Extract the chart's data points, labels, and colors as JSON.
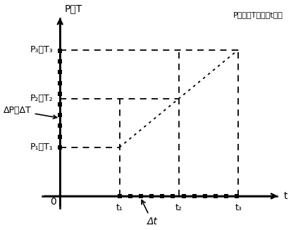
{
  "legend_text": "P压力，T温度，t时间",
  "ylabel": "P、T",
  "xlabel": "t",
  "origin_label": "0",
  "x_tick_labels": [
    "t₁",
    "t₂",
    "t₃"
  ],
  "y_tick_labels": [
    "P₁、T₁",
    "P₂、T₂",
    "P₃、T₃"
  ],
  "dP_dT_label": "ΔP、ΔT",
  "dt_label": "Δt",
  "bg_color": "#ffffff",
  "t1": 1.0,
  "t2": 2.0,
  "t3": 3.0,
  "P1": 1.0,
  "P2": 2.0,
  "P3": 3.0,
  "xlim_max": 3.7,
  "ylim_max": 3.7
}
